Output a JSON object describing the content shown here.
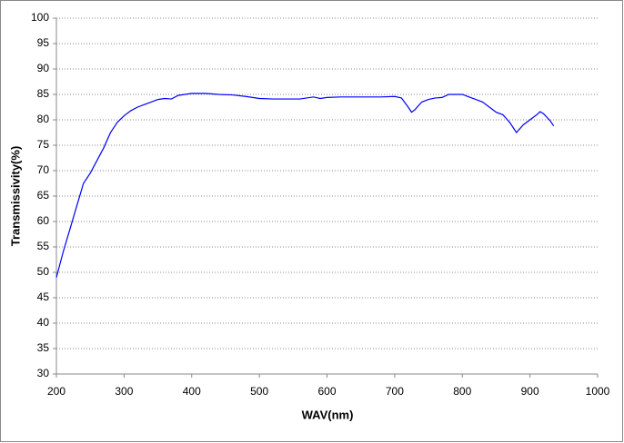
{
  "chart_data": {
    "type": "line",
    "xlabel": "WAV(nm)",
    "ylabel": "Transmissivity(%)",
    "x": [
      200,
      210,
      220,
      230,
      240,
      250,
      260,
      270,
      280,
      290,
      300,
      310,
      320,
      330,
      340,
      350,
      360,
      370,
      380,
      390,
      400,
      420,
      440,
      460,
      480,
      500,
      520,
      540,
      560,
      580,
      590,
      600,
      620,
      640,
      660,
      680,
      700,
      710,
      720,
      725,
      730,
      740,
      750,
      760,
      770,
      780,
      790,
      800,
      810,
      820,
      830,
      840,
      850,
      860,
      870,
      880,
      890,
      900,
      910,
      915,
      920,
      930,
      935
    ],
    "values": [
      49,
      54,
      58.5,
      63,
      67.5,
      69.5,
      72,
      74.5,
      77.5,
      79.5,
      80.8,
      81.8,
      82.5,
      83,
      83.5,
      84,
      84.2,
      84.1,
      84.8,
      85,
      85.2,
      85.2,
      85,
      84.9,
      84.6,
      84.2,
      84.1,
      84.1,
      84.1,
      84.5,
      84.2,
      84.4,
      84.5,
      84.5,
      84.5,
      84.5,
      84.6,
      84.3,
      82.5,
      81.5,
      82,
      83.5,
      84,
      84.3,
      84.4,
      85,
      85,
      85,
      84.5,
      84,
      83.5,
      82.5,
      81.5,
      81,
      79.5,
      77.5,
      79,
      80,
      81,
      81.6,
      81.2,
      79.8,
      78.8
    ],
    "color": "#0000ff",
    "xlim": [
      200,
      1000
    ],
    "xticks": [
      200,
      300,
      400,
      500,
      600,
      700,
      800,
      900,
      1000
    ],
    "ylim": [
      30,
      100
    ],
    "yticks": [
      30,
      35,
      40,
      45,
      50,
      55,
      60,
      65,
      70,
      75,
      80,
      85,
      90,
      95,
      100
    ],
    "grid": true
  }
}
